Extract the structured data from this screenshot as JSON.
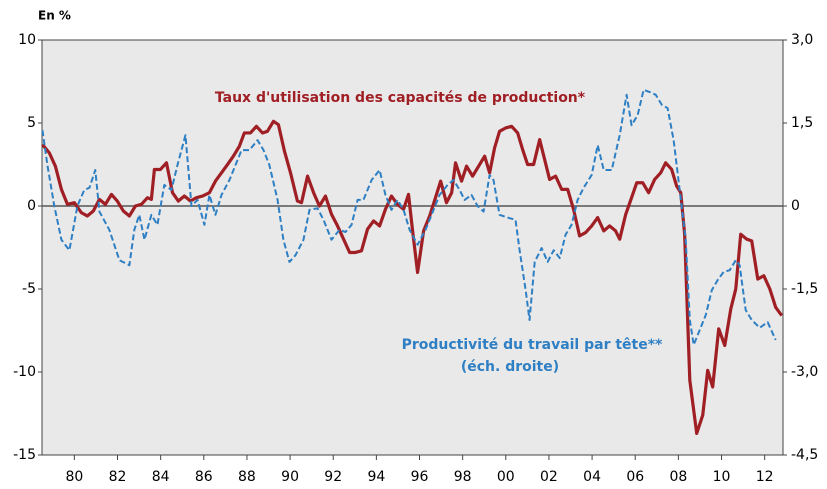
{
  "chart_data": {
    "type": "line",
    "y_label": "En %",
    "annotations": [
      "Taux d'utilisation des capacités de production*",
      "Productivité du travail par tête**",
      "(éch. droite)"
    ],
    "xlim": [
      1978.5,
      2012.85
    ],
    "xticks": [
      {
        "value": 1980,
        "label": "80"
      },
      {
        "value": 1982,
        "label": "82"
      },
      {
        "value": 1984,
        "label": "84"
      },
      {
        "value": 1986,
        "label": "86"
      },
      {
        "value": 1988,
        "label": "88"
      },
      {
        "value": 1990,
        "label": "90"
      },
      {
        "value": 1992,
        "label": "92"
      },
      {
        "value": 1994,
        "label": "94"
      },
      {
        "value": 1996,
        "label": "96"
      },
      {
        "value": 1998,
        "label": "98"
      },
      {
        "value": 2000,
        "label": "00"
      },
      {
        "value": 2002,
        "label": "02"
      },
      {
        "value": 2004,
        "label": "04"
      },
      {
        "value": 2006,
        "label": "06"
      },
      {
        "value": 2008,
        "label": "08"
      },
      {
        "value": 2010,
        "label": "10"
      },
      {
        "value": 2012,
        "label": "12"
      }
    ],
    "ylim": [
      -15,
      10
    ],
    "yticks": [
      -15,
      -10,
      -5,
      0,
      5,
      10
    ],
    "y2lim": [
      -4.5,
      3
    ],
    "y2ticks": [
      {
        "value": -4.5,
        "label": "-4,5"
      },
      {
        "value": -3,
        "label": "-3,0"
      },
      {
        "value": -1.5,
        "label": "-1,5"
      },
      0,
      {
        "value": 1.5,
        "label": "1,5"
      },
      {
        "value": 3,
        "label": "3,0"
      }
    ],
    "zero_line": true,
    "series": [
      {
        "name": "Taux d'utilisation des capacités de production*",
        "color": "#a01f25",
        "dash": false,
        "x": [
          1978.52,
          1978.84,
          1979.12,
          1979.4,
          1979.68,
          1980.0,
          1980.32,
          1980.6,
          1980.88,
          1981.16,
          1981.44,
          1981.72,
          1981.99,
          1982.27,
          1982.55,
          1982.83,
          1983.11,
          1983.39,
          1983.57,
          1983.71,
          1983.99,
          1984.27,
          1984.55,
          1984.82,
          1985.1,
          1985.38,
          1985.66,
          1985.94,
          1986.26,
          1986.54,
          1986.82,
          1987.1,
          1987.37,
          1987.65,
          1987.88,
          1988.16,
          1988.44,
          1988.72,
          1988.95,
          1989.23,
          1989.46,
          1989.74,
          1990.02,
          1990.34,
          1990.53,
          1990.81,
          1991.09,
          1991.36,
          1991.64,
          1991.92,
          1992.2,
          1992.48,
          1992.76,
          1993.03,
          1993.31,
          1993.59,
          1993.87,
          1994.15,
          1994.42,
          1994.7,
          1994.98,
          1995.26,
          1995.49,
          1995.68,
          1995.91,
          1996.19,
          1996.47,
          1996.74,
          1996.98,
          1997.25,
          1997.49,
          1997.67,
          1997.95,
          1998.18,
          1998.46,
          1998.74,
          1999.02,
          1999.25,
          1999.48,
          1999.71,
          1999.99,
          2000.27,
          2000.55,
          2000.78,
          2001.01,
          2001.29,
          2001.57,
          2001.8,
          2002.03,
          2002.31,
          2002.59,
          2002.87,
          2003.14,
          2003.42,
          2003.7,
          2003.98,
          2004.26,
          2004.54,
          2004.81,
          2005.09,
          2005.28,
          2005.56,
          2005.83,
          2006.07,
          2006.35,
          2006.62,
          2006.9,
          2007.18,
          2007.41,
          2007.69,
          2007.92,
          2008.11,
          2008.29,
          2008.53,
          2008.85,
          2009.13,
          2009.36,
          2009.59,
          2009.87,
          2010.15,
          2010.43,
          2010.66,
          2010.89,
          2011.17,
          2011.4,
          2011.68,
          2011.96,
          2012.24,
          2012.51,
          2012.79
        ],
        "values": [
          3.7,
          3.2,
          2.4,
          1.0,
          0.1,
          0.2,
          -0.4,
          -0.6,
          -0.3,
          0.4,
          0.1,
          0.7,
          0.3,
          -0.3,
          -0.6,
          0,
          0.1,
          0.5,
          0.4,
          2.2,
          2.2,
          2.6,
          0.8,
          0.3,
          0.6,
          0.3,
          0.5,
          0.6,
          0.8,
          1.5,
          2.0,
          2.5,
          3.0,
          3.6,
          4.4,
          4.4,
          4.8,
          4.4,
          4.5,
          5.1,
          4.9,
          3.3,
          2.0,
          0.3,
          0.2,
          1.8,
          0.8,
          0,
          0.6,
          -0.5,
          -1.2,
          -2.0,
          -2.8,
          -2.8,
          -2.7,
          -1.4,
          -0.9,
          -1.2,
          -0.2,
          0.6,
          0.1,
          -0.2,
          0.7,
          -1.5,
          -4.0,
          -1.5,
          -0.6,
          0.5,
          1.5,
          0.2,
          0.8,
          2.6,
          1.5,
          2.4,
          1.8,
          2.4,
          3.0,
          2.0,
          3.5,
          4.5,
          4.7,
          4.8,
          4.4,
          3.4,
          2.5,
          2.5,
          4.0,
          2.8,
          1.6,
          1.8,
          1.0,
          1.0,
          -0.2,
          -1.8,
          -1.6,
          -1.2,
          -0.7,
          -1.5,
          -1.2,
          -1.5,
          -2.0,
          -0.5,
          0.5,
          1.4,
          1.4,
          0.8,
          1.6,
          2.0,
          2.6,
          2.2,
          1.2,
          0.8,
          -1.7,
          -10.5,
          -13.7,
          -12.6,
          -9.9,
          -10.9,
          -7.4,
          -8.4,
          -6.2,
          -5.0,
          -1.7,
          -2.0,
          -2.1,
          -4.4,
          -4.2,
          -5.0,
          -6.1,
          -6.6
        ]
      },
      {
        "name": "Productivité du travail par tête**",
        "color": "#2e7fc3",
        "dash": true,
        "axis": "y2",
        "x": [
          1978.52,
          1978.75,
          1979.07,
          1979.4,
          1979.77,
          1980.14,
          1980.46,
          1980.7,
          1980.97,
          1981.16,
          1981.62,
          1982.09,
          1982.55,
          1982.78,
          1983.01,
          1983.25,
          1983.57,
          1983.85,
          1984.17,
          1984.5,
          1984.78,
          1985.15,
          1985.43,
          1985.71,
          1986.03,
          1986.26,
          1986.54,
          1986.82,
          1987.19,
          1987.47,
          1987.75,
          1988.12,
          1988.49,
          1988.77,
          1989.04,
          1989.42,
          1989.69,
          1989.97,
          1990.25,
          1990.62,
          1990.9,
          1991.27,
          1991.55,
          1991.92,
          1992.29,
          1992.57,
          1992.85,
          1993.13,
          1993.4,
          1993.78,
          1994.15,
          1994.42,
          1994.7,
          1994.98,
          1995.26,
          1995.54,
          1995.91,
          1996.28,
          1996.56,
          1996.93,
          1997.3,
          1997.58,
          1997.86,
          1998.09,
          1998.41,
          1998.69,
          1998.97,
          1999.25,
          1999.43,
          1999.71,
          2000.18,
          2000.45,
          2000.64,
          2000.92,
          2001.1,
          2001.34,
          2001.66,
          2001.94,
          2002.22,
          2002.5,
          2002.77,
          2003.05,
          2003.33,
          2003.61,
          2003.98,
          2004.26,
          2004.54,
          2004.91,
          2005.28,
          2005.6,
          2005.83,
          2006.11,
          2006.39,
          2006.67,
          2006.95,
          2007.23,
          2007.5,
          2007.78,
          2008.06,
          2008.34,
          2008.53,
          2008.71,
          2008.99,
          2009.27,
          2009.55,
          2009.82,
          2010.1,
          2010.38,
          2010.66,
          2010.84,
          2011.12,
          2011.4,
          2011.77,
          2012.14,
          2012.51
        ],
        "values": [
          1.37,
          0.74,
          0,
          -0.61,
          -0.8,
          0,
          0.29,
          0.33,
          0.65,
          -0.1,
          -0.43,
          -0.98,
          -1.07,
          -0.43,
          -0.16,
          -0.61,
          -0.16,
          -0.34,
          0.38,
          0.29,
          0.74,
          1.28,
          0,
          0.11,
          -0.34,
          0.2,
          -0.16,
          0.2,
          0.47,
          0.74,
          1.01,
          1.01,
          1.19,
          1.01,
          0.74,
          0.11,
          -0.61,
          -1.01,
          -0.89,
          -0.61,
          -0.07,
          -0.04,
          -0.25,
          -0.61,
          -0.43,
          -0.47,
          -0.34,
          0.11,
          0.11,
          0.47,
          0.65,
          0.2,
          -0.07,
          0.11,
          -0.07,
          -0.43,
          -0.7,
          -0.43,
          -0.16,
          0.2,
          0.38,
          0.47,
          0.29,
          0.11,
          0.2,
          0,
          -0.1,
          0.56,
          0.47,
          -0.16,
          -0.22,
          -0.25,
          -0.8,
          -1.52,
          -2.06,
          -1.01,
          -0.76,
          -1.01,
          -0.8,
          -0.94,
          -0.52,
          -0.34,
          0.11,
          0.33,
          0.56,
          1.1,
          0.65,
          0.65,
          1.28,
          2.01,
          1.46,
          1.64,
          2.1,
          2.06,
          2.01,
          1.83,
          1.77,
          1.19,
          0.29,
          -0.61,
          -2.06,
          -2.51,
          -2.24,
          -1.97,
          -1.52,
          -1.34,
          -1.19,
          -1.16,
          -0.98,
          -1.07,
          -1.88,
          -2.06,
          -2.2,
          -2.1,
          -2.42
        ]
      }
    ]
  }
}
